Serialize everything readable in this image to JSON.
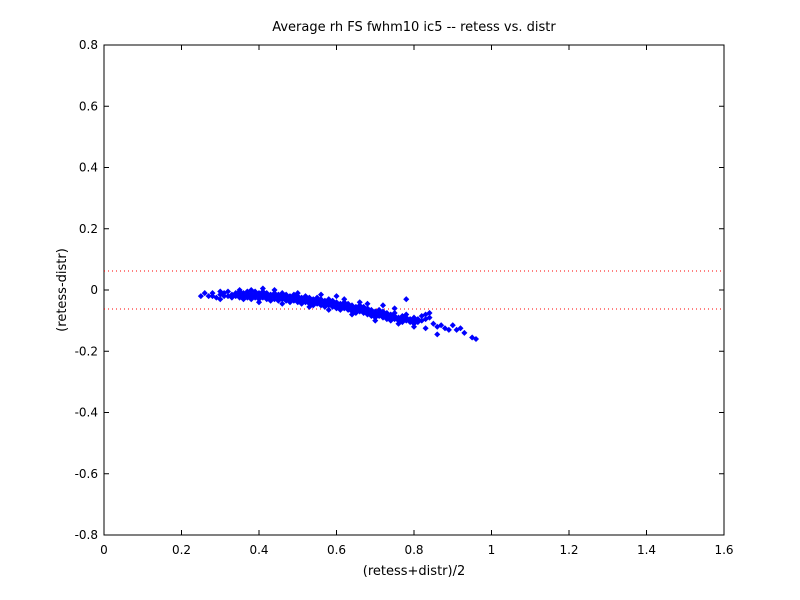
{
  "chart_data": {
    "type": "scatter",
    "title": "Average rh FS fwhm10 ic5 -- retess vs. distr",
    "xlabel": "(retess+distr)/2",
    "ylabel": "(retess-distr)",
    "xlim": [
      0,
      1.6
    ],
    "ylim": [
      -0.8,
      0.8
    ],
    "x_ticks": [
      "0",
      "0.2",
      "0.4",
      "0.6",
      "0.8",
      "1",
      "1.2",
      "1.4",
      "1.6"
    ],
    "y_ticks": [
      "-0.8",
      "-0.6",
      "-0.4",
      "-0.2",
      "0",
      "0.2",
      "0.4",
      "0.6",
      "0.8"
    ],
    "grid": false,
    "reference_lines": [
      {
        "y": 0.062,
        "style": "dotted",
        "color": "#ff0000"
      },
      {
        "y": -0.062,
        "style": "dotted",
        "color": "#ff0000"
      }
    ],
    "series": [
      {
        "color": "#0000ff",
        "marker": "diamond",
        "points": [
          [
            0.25,
            -0.02
          ],
          [
            0.26,
            -0.01
          ],
          [
            0.27,
            -0.02
          ],
          [
            0.28,
            -0.01
          ],
          [
            0.28,
            -0.02
          ],
          [
            0.29,
            -0.025
          ],
          [
            0.3,
            -0.015
          ],
          [
            0.3,
            -0.005
          ],
          [
            0.31,
            -0.02
          ],
          [
            0.31,
            -0.01
          ],
          [
            0.32,
            -0.02
          ],
          [
            0.32,
            -0.005
          ],
          [
            0.33,
            -0.015
          ],
          [
            0.33,
            -0.025
          ],
          [
            0.34,
            -0.01
          ],
          [
            0.34,
            -0.02
          ],
          [
            0.35,
            -0.005
          ],
          [
            0.35,
            -0.015
          ],
          [
            0.35,
            -0.025
          ],
          [
            0.36,
            -0.01
          ],
          [
            0.36,
            -0.02
          ],
          [
            0.36,
            -0.03
          ],
          [
            0.37,
            -0.015
          ],
          [
            0.37,
            -0.005
          ],
          [
            0.37,
            -0.025
          ],
          [
            0.38,
            -0.01
          ],
          [
            0.38,
            -0.02
          ],
          [
            0.38,
            -0.03
          ],
          [
            0.39,
            -0.015
          ],
          [
            0.39,
            -0.025
          ],
          [
            0.39,
            -0.005
          ],
          [
            0.4,
            -0.02
          ],
          [
            0.4,
            -0.01
          ],
          [
            0.4,
            -0.03
          ],
          [
            0.41,
            -0.015
          ],
          [
            0.41,
            -0.025
          ],
          [
            0.41,
            -0.005
          ],
          [
            0.42,
            -0.02
          ],
          [
            0.42,
            -0.03
          ],
          [
            0.42,
            -0.01
          ],
          [
            0.43,
            -0.015
          ],
          [
            0.43,
            -0.025
          ],
          [
            0.43,
            -0.035
          ],
          [
            0.44,
            -0.02
          ],
          [
            0.44,
            -0.01
          ],
          [
            0.44,
            -0.03
          ],
          [
            0.45,
            -0.025
          ],
          [
            0.45,
            -0.015
          ],
          [
            0.45,
            -0.035
          ],
          [
            0.46,
            -0.02
          ],
          [
            0.46,
            -0.03
          ],
          [
            0.46,
            -0.01
          ],
          [
            0.47,
            -0.025
          ],
          [
            0.47,
            -0.035
          ],
          [
            0.47,
            -0.015
          ],
          [
            0.48,
            -0.02
          ],
          [
            0.48,
            -0.03
          ],
          [
            0.48,
            -0.04
          ],
          [
            0.49,
            -0.025
          ],
          [
            0.49,
            -0.035
          ],
          [
            0.49,
            -0.015
          ],
          [
            0.5,
            -0.03
          ],
          [
            0.5,
            -0.02
          ],
          [
            0.5,
            -0.04
          ],
          [
            0.51,
            -0.025
          ],
          [
            0.51,
            -0.035
          ],
          [
            0.51,
            -0.045
          ],
          [
            0.52,
            -0.03
          ],
          [
            0.52,
            -0.04
          ],
          [
            0.52,
            -0.02
          ],
          [
            0.53,
            -0.035
          ],
          [
            0.53,
            -0.045
          ],
          [
            0.53,
            -0.025
          ],
          [
            0.54,
            -0.03
          ],
          [
            0.54,
            -0.04
          ],
          [
            0.54,
            -0.05
          ],
          [
            0.55,
            -0.035
          ],
          [
            0.55,
            -0.045
          ],
          [
            0.55,
            -0.025
          ],
          [
            0.56,
            -0.04
          ],
          [
            0.56,
            -0.05
          ],
          [
            0.56,
            -0.03
          ],
          [
            0.57,
            -0.045
          ],
          [
            0.57,
            -0.035
          ],
          [
            0.57,
            -0.055
          ],
          [
            0.58,
            -0.04
          ],
          [
            0.58,
            -0.05
          ],
          [
            0.58,
            -0.03
          ],
          [
            0.59,
            -0.045
          ],
          [
            0.59,
            -0.055
          ],
          [
            0.59,
            -0.035
          ],
          [
            0.6,
            -0.05
          ],
          [
            0.6,
            -0.04
          ],
          [
            0.6,
            -0.06
          ],
          [
            0.61,
            -0.045
          ],
          [
            0.61,
            -0.055
          ],
          [
            0.61,
            -0.065
          ],
          [
            0.62,
            -0.05
          ],
          [
            0.62,
            -0.06
          ],
          [
            0.62,
            -0.04
          ],
          [
            0.63,
            -0.055
          ],
          [
            0.63,
            -0.065
          ],
          [
            0.63,
            -0.045
          ],
          [
            0.64,
            -0.06
          ],
          [
            0.64,
            -0.05
          ],
          [
            0.64,
            -0.07
          ],
          [
            0.65,
            -0.055
          ],
          [
            0.65,
            -0.065
          ],
          [
            0.65,
            -0.075
          ],
          [
            0.66,
            -0.06
          ],
          [
            0.66,
            -0.07
          ],
          [
            0.66,
            -0.05
          ],
          [
            0.67,
            -0.065
          ],
          [
            0.67,
            -0.075
          ],
          [
            0.67,
            -0.055
          ],
          [
            0.68,
            -0.07
          ],
          [
            0.68,
            -0.08
          ],
          [
            0.68,
            -0.06
          ],
          [
            0.69,
            -0.075
          ],
          [
            0.69,
            -0.065
          ],
          [
            0.69,
            -0.085
          ],
          [
            0.7,
            -0.07
          ],
          [
            0.7,
            -0.08
          ],
          [
            0.7,
            -0.09
          ],
          [
            0.71,
            -0.075
          ],
          [
            0.71,
            -0.085
          ],
          [
            0.71,
            -0.065
          ],
          [
            0.72,
            -0.08
          ],
          [
            0.72,
            -0.09
          ],
          [
            0.72,
            -0.07
          ],
          [
            0.73,
            -0.085
          ],
          [
            0.73,
            -0.095
          ],
          [
            0.73,
            -0.075
          ],
          [
            0.74,
            -0.09
          ],
          [
            0.74,
            -0.08
          ],
          [
            0.74,
            -0.1
          ],
          [
            0.75,
            -0.085
          ],
          [
            0.75,
            -0.095
          ],
          [
            0.75,
            -0.075
          ],
          [
            0.76,
            -0.09
          ],
          [
            0.76,
            -0.1
          ],
          [
            0.76,
            -0.11
          ],
          [
            0.77,
            -0.095
          ],
          [
            0.77,
            -0.085
          ],
          [
            0.77,
            -0.105
          ],
          [
            0.78,
            -0.09
          ],
          [
            0.78,
            -0.1
          ],
          [
            0.78,
            -0.08
          ],
          [
            0.79,
            -0.095
          ],
          [
            0.79,
            -0.105
          ],
          [
            0.8,
            -0.1
          ],
          [
            0.8,
            -0.09
          ],
          [
            0.8,
            -0.11
          ],
          [
            0.81,
            -0.095
          ],
          [
            0.81,
            -0.105
          ],
          [
            0.82,
            -0.1
          ],
          [
            0.82,
            -0.085
          ],
          [
            0.83,
            -0.095
          ],
          [
            0.83,
            -0.08
          ],
          [
            0.84,
            -0.09
          ],
          [
            0.84,
            -0.075
          ],
          [
            0.85,
            -0.11
          ],
          [
            0.86,
            -0.12
          ],
          [
            0.87,
            -0.115
          ],
          [
            0.88,
            -0.125
          ],
          [
            0.89,
            -0.13
          ],
          [
            0.9,
            -0.115
          ],
          [
            0.91,
            -0.13
          ],
          [
            0.92,
            -0.125
          ],
          [
            0.93,
            -0.14
          ],
          [
            0.95,
            -0.155
          ],
          [
            0.96,
            -0.16
          ],
          [
            0.78,
            -0.03
          ],
          [
            0.75,
            -0.06
          ],
          [
            0.6,
            -0.02
          ],
          [
            0.66,
            -0.04
          ],
          [
            0.72,
            -0.05
          ],
          [
            0.56,
            -0.015
          ],
          [
            0.5,
            -0.01
          ],
          [
            0.44,
            0.0
          ],
          [
            0.46,
            -0.045
          ],
          [
            0.58,
            -0.065
          ],
          [
            0.7,
            -0.1
          ],
          [
            0.86,
            -0.145
          ],
          [
            0.83,
            -0.125
          ],
          [
            0.8,
            -0.12
          ],
          [
            0.35,
            0.0
          ],
          [
            0.38,
            0.0
          ],
          [
            0.41,
            0.005
          ],
          [
            0.3,
            -0.03
          ],
          [
            0.4,
            -0.04
          ],
          [
            0.53,
            -0.055
          ],
          [
            0.64,
            -0.08
          ],
          [
            0.68,
            -0.045
          ],
          [
            0.62,
            -0.03
          ]
        ]
      }
    ]
  }
}
